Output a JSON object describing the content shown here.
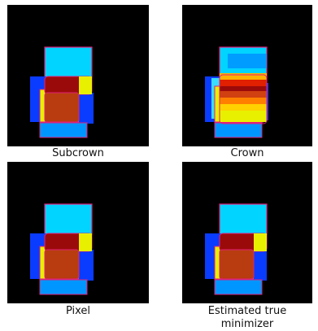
{
  "panels": [
    {
      "id": "subcrown",
      "caption": "Subcrown"
    },
    {
      "id": "crown",
      "caption": "Crown"
    },
    {
      "id": "pixel",
      "caption": "Pixel"
    },
    {
      "id": "estimated",
      "caption": "Estimated true\nminimizer"
    }
  ],
  "colors": {
    "background": "#000000",
    "cyan": "#00d4ff",
    "sky": "#0096ff",
    "blue": "#0a3cff",
    "yellow": "#e8f000",
    "dark_red": "#9b0a0a",
    "rust": "#b83c0f",
    "outline": "#e0207a"
  }
}
